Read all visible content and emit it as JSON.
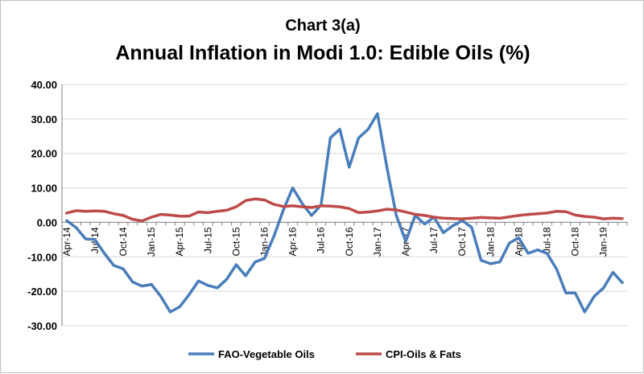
{
  "chart_data": {
    "type": "line",
    "title": "Chart 3(a)",
    "subtitle": "Annual  Inflation in Modi 1.0: Edible Oils (%)",
    "xlabel": "",
    "ylabel": "",
    "ylim": [
      -30,
      40
    ],
    "yticks": [
      "40.00",
      "30.00",
      "20.00",
      "10.00",
      "0.00",
      "-10.00",
      "-20.00",
      "-30.00"
    ],
    "grid": "horizontal",
    "legend_position": "bottom",
    "x": [
      "Apr-14",
      "May-14",
      "Jun-14",
      "Jul-14",
      "Aug-14",
      "Sep-14",
      "Oct-14",
      "Nov-14",
      "Dec-14",
      "Jan-15",
      "Feb-15",
      "Mar-15",
      "Apr-15",
      "May-15",
      "Jun-15",
      "Jul-15",
      "Aug-15",
      "Sep-15",
      "Oct-15",
      "Nov-15",
      "Dec-15",
      "Jan-16",
      "Feb-16",
      "Mar-16",
      "Apr-16",
      "May-16",
      "Jun-16",
      "Jul-16",
      "Aug-16",
      "Sep-16",
      "Oct-16",
      "Nov-16",
      "Dec-16",
      "Jan-17",
      "Feb-17",
      "Mar-17",
      "Apr-17",
      "May-17",
      "Jun-17",
      "Jul-17",
      "Aug-17",
      "Sep-17",
      "Oct-17",
      "Nov-17",
      "Dec-17",
      "Jan-18",
      "Feb-18",
      "Mar-18",
      "Apr-18",
      "May-18",
      "Jun-18",
      "Jul-18",
      "Aug-18",
      "Sep-18",
      "Oct-18",
      "Nov-18",
      "Dec-18",
      "Jan-19",
      "Feb-19",
      "Mar-19"
    ],
    "xtick_labels": [
      "Apr-14",
      "Jul-14",
      "Oct-14",
      "Jan-15",
      "Apr-15",
      "Jul-15",
      "Oct-15",
      "Jan-16",
      "Apr-16",
      "Jul-16",
      "Oct-16",
      "Jan-17",
      "Apr-17",
      "Jul-17",
      "Oct-17",
      "Jan-18",
      "Apr-18",
      "Jul-18",
      "Oct-18",
      "Jan-19"
    ],
    "series": [
      {
        "name": "FAO-Vegetable Oils",
        "color": "#4a7ebb",
        "values": [
          0.5,
          -1.5,
          -4.8,
          -5.0,
          -9.0,
          -12.5,
          -13.5,
          -17.3,
          -18.5,
          -18.0,
          -21.5,
          -26.0,
          -24.5,
          -21.0,
          -17.0,
          -18.3,
          -19.0,
          -16.5,
          -12.3,
          -15.5,
          -11.5,
          -10.5,
          -4.0,
          3.5,
          10.0,
          5.5,
          2.0,
          5.0,
          24.5,
          27.0,
          16.0,
          24.5,
          27.0,
          31.5,
          16.0,
          2.0,
          -5.5,
          2.0,
          -0.5,
          1.5,
          -3.0,
          -1.0,
          0.5,
          -1.5,
          -11.0,
          -12.0,
          -11.5,
          -6.0,
          -4.5,
          -9.0,
          -8.0,
          -9.0,
          -13.5,
          -20.5,
          -20.5,
          -26.0,
          -21.5,
          -19.0,
          -14.5,
          -17.5
        ]
      },
      {
        "name": "CPI-Oils & Fats",
        "color": "#be4b48",
        "values": [
          2.7,
          3.4,
          3.2,
          3.3,
          3.2,
          2.5,
          2.0,
          0.9,
          0.4,
          1.5,
          2.3,
          2.1,
          1.8,
          1.8,
          3.0,
          2.8,
          3.2,
          3.5,
          4.5,
          6.3,
          6.8,
          6.5,
          5.2,
          4.6,
          4.8,
          4.5,
          4.3,
          4.8,
          4.7,
          4.5,
          4.0,
          2.8,
          3.0,
          3.3,
          3.8,
          3.6,
          3.0,
          2.3,
          2.0,
          1.5,
          1.2,
          1.1,
          1.0,
          1.2,
          1.4,
          1.3,
          1.2,
          1.6,
          2.0,
          2.3,
          2.5,
          2.7,
          3.2,
          3.1,
          2.1,
          1.7,
          1.5,
          1.0,
          1.2,
          1.1
        ]
      }
    ]
  }
}
